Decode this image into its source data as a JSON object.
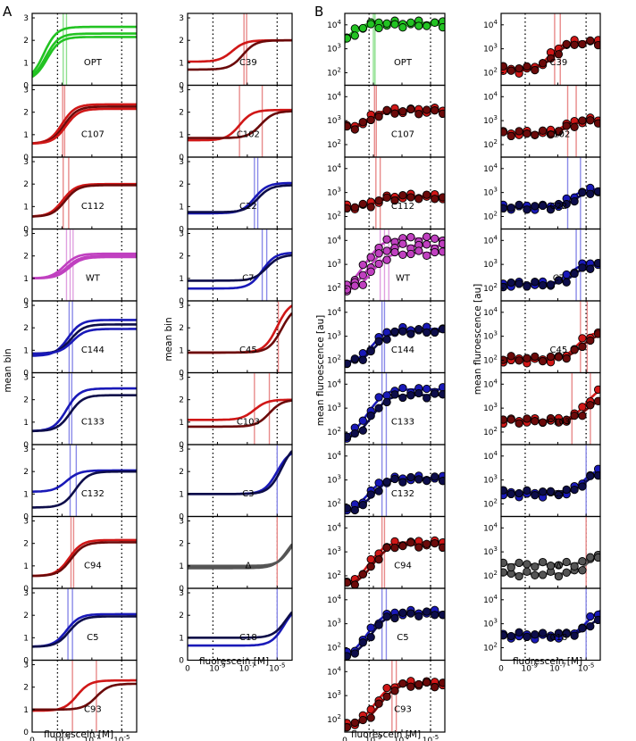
{
  "figure": {
    "panel_a_letter": "A",
    "panel_b_letter": "B",
    "xlabel": "fluorescein [M]",
    "ylabel_a": "mean bin",
    "ylabel_b": "mean fluroescence [au]"
  },
  "colors": {
    "green": "#22c322",
    "red": "#d01717",
    "dark_red": "#6b0a0a",
    "blue": "#1919b8",
    "navy": "#0d0d4a",
    "magenta": "#c040c0",
    "gray": "#555555",
    "light_green": "#8fe08f",
    "light_red": "#e88a8a",
    "light_blue": "#8a8ae8",
    "light_magenta": "#e0a0e0"
  },
  "chart_data": [
    {
      "type": "line",
      "panel": "A",
      "column": "left",
      "xlabel": "fluorescein [M]",
      "ylabel": "mean bin",
      "xscale": "log",
      "xlim": [
        1e-11,
        0.0001
      ],
      "ylim": [
        0,
        3.2
      ],
      "yticks": [
        "0",
        "1",
        "2",
        "3"
      ],
      "xticks": [
        "0",
        "10^-9",
        "10^-7",
        "10^-5"
      ],
      "dotted_x": [
        5e-10,
        1e-05
      ],
      "subplots": [
        {
          "label": "OPT",
          "color": "green",
          "series": [
            {
              "base": 0.2,
              "top": 2.6,
              "k": 6e-11
            },
            {
              "base": 0.2,
              "top": 2.3,
              "k": 8e-11
            },
            {
              "base": 0.2,
              "top": 2.15,
              "k": 1e-10
            }
          ],
          "vlines": [
            1.2e-09,
            2e-09
          ]
        },
        {
          "label": "C107",
          "color": "red",
          "series": [
            {
              "base": 0.6,
              "top": 2.35,
              "k": 1e-09
            },
            {
              "base": 0.6,
              "top": 2.25,
              "k": 1.4e-09
            },
            {
              "base": 0.6,
              "top": 2.15,
              "k": 1.8e-09
            }
          ],
          "vlines": [
            1.1e-09,
            1.5e-09
          ]
        },
        {
          "label": "C112",
          "color": "red",
          "series": [
            {
              "base": 0.55,
              "top": 2.0,
              "k": 1.1e-09
            },
            {
              "base": 0.55,
              "top": 1.95,
              "k": 1.6e-09
            }
          ],
          "vlines": [
            1.2e-09,
            2.8e-09
          ]
        },
        {
          "label": "WT",
          "color": "magenta",
          "series": [
            {
              "base": 1.0,
              "top": 2.1,
              "k": 1.4e-09
            },
            {
              "base": 1.0,
              "top": 2.0,
              "k": 2.2e-09
            },
            {
              "base": 1.0,
              "top": 1.95,
              "k": 3e-09
            }
          ],
          "vlines": [
            2e-09,
            3.5e-09,
            5.5e-09
          ]
        },
        {
          "label": "C144",
          "color": "blue",
          "series": [
            {
              "base": 0.75,
              "top": 2.35,
              "k": 2.5e-09
            },
            {
              "base": 0.85,
              "top": 2.15,
              "k": 4e-09
            },
            {
              "base": 0.85,
              "top": 1.95,
              "k": 5e-09
            }
          ],
          "vlines": [
            3e-09,
            5e-09
          ]
        },
        {
          "label": "C133",
          "color": "blue",
          "series": [
            {
              "base": 0.6,
              "top": 2.5,
              "k": 2e-09
            },
            {
              "base": 0.6,
              "top": 2.2,
              "k": 3.5e-09
            }
          ],
          "vlines": [
            3e-09,
            4.5e-09
          ]
        },
        {
          "label": "C132",
          "color": "blue",
          "series": [
            {
              "base": 1.1,
              "top": 2.05,
              "k": 2e-09
            },
            {
              "base": 0.4,
              "top": 2.0,
              "k": 8e-09
            }
          ],
          "vlines": [
            3.5e-09,
            9e-09
          ]
        },
        {
          "label": "C94",
          "color": "red",
          "series": [
            {
              "base": 0.55,
              "top": 2.15,
              "k": 3e-09
            },
            {
              "base": 0.55,
              "top": 2.05,
              "k": 4e-09
            }
          ],
          "vlines": [
            4e-09,
            6e-09
          ]
        },
        {
          "label": "C5",
          "color": "blue",
          "series": [
            {
              "base": 0.6,
              "top": 2.05,
              "k": 2e-09
            },
            {
              "base": 0.6,
              "top": 1.95,
              "k": 3e-09
            }
          ],
          "vlines": [
            2.5e-09,
            5e-09
          ]
        },
        {
          "label": "C93",
          "color": "red",
          "series": [
            {
              "base": 0.95,
              "top": 2.3,
              "k": 1e-08
            },
            {
              "base": 1.0,
              "top": 2.15,
              "k": 2e-07
            }
          ],
          "vlines": [
            5e-09,
            2e-07
          ]
        }
      ]
    },
    {
      "type": "line",
      "panel": "A",
      "column": "right",
      "xlabel": "fluorescein [M]",
      "ylabel": "mean bin",
      "xscale": "log",
      "xlim": [
        1e-11,
        0.0001
      ],
      "ylim": [
        0,
        3.2
      ],
      "yticks": [
        "0",
        "1",
        "2",
        "3"
      ],
      "xticks": [
        "0",
        "10^-9",
        "10^-7",
        "10^-5"
      ],
      "dotted_x": [
        5e-10,
        1e-05
      ],
      "subplots": [
        {
          "label": "C39",
          "color": "red",
          "series": [
            {
              "base": 1.05,
              "top": 2.0,
              "k": 1e-08
            },
            {
              "base": 0.7,
              "top": 2.0,
              "k": 5e-08
            }
          ],
          "vlines": [
            6e-08,
            9e-08
          ]
        },
        {
          "label": "C102",
          "color": "red",
          "series": [
            {
              "base": 0.75,
              "top": 2.1,
              "k": 3e-08
            },
            {
              "base": 0.85,
              "top": 2.05,
              "k": 8e-07
            }
          ],
          "vlines": [
            3e-08,
            1e-06
          ]
        },
        {
          "label": "C22",
          "color": "blue",
          "series": [
            {
              "base": 0.7,
              "top": 2.05,
              "k": 3e-07
            },
            {
              "base": 0.75,
              "top": 1.95,
              "k": 5e-07
            }
          ],
          "vlines": [
            3e-07,
            5e-07
          ]
        },
        {
          "label": "C7",
          "color": "blue",
          "series": [
            {
              "base": 0.55,
              "top": 2.15,
              "k": 1e-06
            },
            {
              "base": 0.9,
              "top": 2.05,
              "k": 2e-06
            }
          ],
          "vlines": [
            1e-06,
            2e-06
          ]
        },
        {
          "label": "C45",
          "color": "red",
          "series": [
            {
              "base": 0.9,
              "top": 3.2,
              "k": 1e-05
            },
            {
              "base": 0.9,
              "top": 3.0,
              "k": 2e-05
            }
          ],
          "vlines": [
            1.2e-05
          ]
        },
        {
          "label": "C103",
          "color": "red",
          "series": [
            {
              "base": 1.1,
              "top": 2.0,
              "k": 3e-07
            },
            {
              "base": 0.8,
              "top": 2.0,
              "k": 3e-06
            }
          ],
          "vlines": [
            3e-07,
            3e-06
          ]
        },
        {
          "label": "C3",
          "color": "blue",
          "series": [
            {
              "base": 1.0,
              "top": 3.0,
              "k": 1e-05
            },
            {
              "base": 1.0,
              "top": 3.3,
              "k": 2e-05
            }
          ],
          "vlines": [
            1e-05
          ]
        },
        {
          "label": "Δ",
          "color": "gray",
          "series": [
            {
              "base": 0.9,
              "top": 2.5,
              "k": 5e-05
            },
            {
              "base": 0.95,
              "top": 2.6,
              "k": 7e-05
            },
            {
              "base": 1.0,
              "top": 2.7,
              "k": 9e-05
            }
          ],
          "vlines": [
            1e-05
          ]
        },
        {
          "label": "C18",
          "color": "blue",
          "series": [
            {
              "base": 0.65,
              "top": 2.5,
              "k": 3e-05
            },
            {
              "base": 1.0,
              "top": 2.6,
              "k": 4e-05
            }
          ],
          "vlines": [
            1e-05
          ]
        }
      ]
    },
    {
      "type": "scatter",
      "panel": "B",
      "column": "left",
      "xlabel": "fluorescein [M]",
      "ylabel": "mean fluroescence [au]",
      "xscale": "log",
      "yscale": "log",
      "xlim": [
        1e-11,
        0.0001
      ],
      "ylim": [
        30,
        30000
      ],
      "yticks": [
        "10^2",
        "10^3",
        "10^4"
      ],
      "xticks": [
        "0",
        "10^-9",
        "10^-7",
        "10^-5"
      ],
      "dotted_x": [
        5e-10,
        1e-05
      ],
      "subplots": [
        {
          "label": "OPT",
          "color": "green",
          "series": [
            {
              "base": 800,
              "top": 12000,
              "k": 6e-11
            },
            {
              "base": 800,
              "top": 10000,
              "k": 8e-11
            }
          ],
          "vlines": [
            1e-09,
            1.3e-09
          ]
        },
        {
          "label": "C107",
          "color": "red",
          "series": [
            {
              "base": 500,
              "top": 2800,
              "k": 1e-09
            },
            {
              "base": 500,
              "top": 2500,
              "k": 1.5e-09
            }
          ],
          "vlines": [
            1.2e-09,
            1.6e-09
          ]
        },
        {
          "label": "C112",
          "color": "red",
          "series": [
            {
              "base": 250,
              "top": 700,
              "k": 2e-09
            },
            {
              "base": 250,
              "top": 650,
              "k": 3e-09
            }
          ],
          "vlines": [
            1.5e-09,
            3e-09
          ]
        },
        {
          "label": "WT",
          "color": "magenta",
          "series": [
            {
              "base": 80,
              "top": 12000,
              "k": 3e-09
            },
            {
              "base": 80,
              "top": 6000,
              "k": 4e-09
            },
            {
              "base": 80,
              "top": 3000,
              "k": 5e-09
            }
          ],
          "vlines": [
            3e-09,
            6e-09,
            1.2e-08
          ]
        },
        {
          "label": "C144",
          "color": "blue",
          "series": [
            {
              "base": 80,
              "top": 2000,
              "k": 4e-09
            },
            {
              "base": 80,
              "top": 1600,
              "k": 6e-09
            }
          ],
          "vlines": [
            4e-09,
            6e-09
          ]
        },
        {
          "label": "C133",
          "color": "blue",
          "series": [
            {
              "base": 50,
              "top": 6000,
              "k": 4e-09
            },
            {
              "base": 50,
              "top": 3500,
              "k": 6e-09
            }
          ],
          "vlines": [
            4e-09,
            8e-09
          ]
        },
        {
          "label": "C132",
          "color": "blue",
          "series": [
            {
              "base": 50,
              "top": 1200,
              "k": 2e-09
            },
            {
              "base": 50,
              "top": 1100,
              "k": 4e-09
            }
          ],
          "vlines": [
            4e-09,
            8e-09
          ]
        },
        {
          "label": "C94",
          "color": "red",
          "series": [
            {
              "base": 40,
              "top": 2500,
              "k": 4e-09
            },
            {
              "base": 40,
              "top": 2000,
              "k": 6e-09
            }
          ],
          "vlines": [
            4e-09,
            6e-09
          ]
        },
        {
          "label": "C5",
          "color": "blue",
          "series": [
            {
              "base": 40,
              "top": 3000,
              "k": 3e-09
            },
            {
              "base": 40,
              "top": 2600,
              "k": 5e-09
            }
          ],
          "vlines": [
            4e-09,
            8e-09
          ]
        },
        {
          "label": "C93",
          "color": "red",
          "series": [
            {
              "base": 60,
              "top": 3500,
              "k": 1e-08
            },
            {
              "base": 60,
              "top": 3000,
              "k": 2e-08
            }
          ],
          "vlines": [
            2e-08,
            4e-08
          ]
        }
      ]
    },
    {
      "type": "scatter",
      "panel": "B",
      "column": "right",
      "xlabel": "fluorescein [M]",
      "ylabel": "mean fluroescence [au]",
      "xscale": "log",
      "yscale": "log",
      "xlim": [
        1e-11,
        0.0001
      ],
      "ylim": [
        30,
        30000
      ],
      "yticks": [
        "10^2",
        "10^3",
        "10^4"
      ],
      "xticks": [
        "0",
        "10^-9",
        "10^-7",
        "10^-5"
      ],
      "dotted_x": [
        5e-10,
        1e-05
      ],
      "subplots": [
        {
          "label": "C39",
          "color": "red",
          "series": [
            {
              "base": 120,
              "top": 2000,
              "k": 1e-07
            },
            {
              "base": 150,
              "top": 1800,
              "k": 2e-07
            }
          ],
          "vlines": [
            6e-08,
            1.5e-07
          ]
        },
        {
          "label": "C102",
          "color": "red",
          "series": [
            {
              "base": 300,
              "top": 1100,
              "k": 5e-07
            },
            {
              "base": 300,
              "top": 1000,
              "k": 1e-06
            }
          ],
          "vlines": [
            5e-07,
            2e-06
          ]
        },
        {
          "label": "C22",
          "color": "blue",
          "series": [
            {
              "base": 250,
              "top": 1400,
              "k": 2e-06
            },
            {
              "base": 250,
              "top": 1200,
              "k": 4e-06
            }
          ],
          "vlines": [
            5e-07,
            4e-06
          ]
        },
        {
          "label": "C7",
          "color": "blue",
          "series": [
            {
              "base": 150,
              "top": 1200,
              "k": 2e-06
            },
            {
              "base": 150,
              "top": 1000,
              "k": 4e-06
            }
          ],
          "vlines": [
            2e-06,
            4e-06
          ]
        },
        {
          "label": "C45",
          "color": "red",
          "series": [
            {
              "base": 100,
              "top": 1500,
              "k": 8e-06
            },
            {
              "base": 120,
              "top": 1200,
              "k": 1.5e-05
            }
          ],
          "vlines": [
            4e-06,
            1.2e-05
          ]
        },
        {
          "label": "C103",
          "color": "red",
          "series": [
            {
              "base": 300,
              "top": 8000,
              "k": 5e-05
            },
            {
              "base": 300,
              "top": 2500,
              "k": 3e-05
            }
          ],
          "vlines": [
            1e-06,
            2e-05
          ]
        },
        {
          "label": "C3",
          "color": "blue",
          "series": [
            {
              "base": 250,
              "top": 3000,
              "k": 2e-05
            },
            {
              "base": 300,
              "top": 2500,
              "k": 3e-05
            }
          ],
          "vlines": [
            1e-05
          ]
        },
        {
          "label": "Δ",
          "color": "gray",
          "series": [
            {
              "base": 120,
              "top": 1200,
              "k": 5e-05
            },
            {
              "base": 300,
              "top": 1100,
              "k": 5e-05
            }
          ],
          "vlines": [
            1e-05
          ]
        },
        {
          "label": "C18",
          "color": "blue",
          "series": [
            {
              "base": 300,
              "top": 5000,
              "k": 5e-05
            },
            {
              "base": 350,
              "top": 3000,
              "k": 8e-05
            }
          ],
          "vlines": [
            1e-05
          ]
        }
      ]
    }
  ]
}
